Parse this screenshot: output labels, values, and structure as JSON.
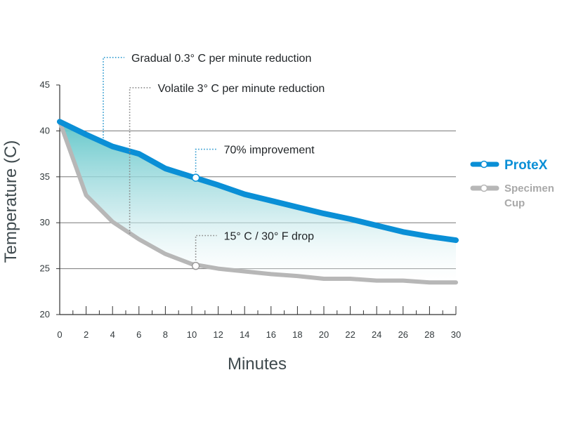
{
  "chart_data": {
    "type": "area",
    "xlabel": "Minutes",
    "ylabel": "Temperature (C)",
    "xlim": [
      0,
      30
    ],
    "ylim": [
      20,
      45
    ],
    "xticks": [
      0,
      2,
      4,
      6,
      8,
      10,
      12,
      14,
      16,
      18,
      20,
      22,
      24,
      26,
      28,
      30
    ],
    "yticks": [
      20,
      25,
      30,
      35,
      40,
      45
    ],
    "grid": "horizontal",
    "legend_position": "right",
    "series": [
      {
        "name": "ProteX",
        "color": "#0a8fd6",
        "x": [
          0,
          2,
          4,
          6,
          8,
          10,
          12,
          14,
          16,
          18,
          20,
          22,
          24,
          26,
          28,
          30
        ],
        "y": [
          41.0,
          39.6,
          38.3,
          37.5,
          35.9,
          35.0,
          34.1,
          33.1,
          32.4,
          31.7,
          31.0,
          30.4,
          29.7,
          29.0,
          28.5,
          28.1
        ]
      },
      {
        "name": "Specimen Cup",
        "color": "#b7b7b7",
        "x": [
          0,
          2,
          4,
          6,
          8,
          10,
          12,
          14,
          16,
          18,
          20,
          22,
          24,
          26,
          28,
          30
        ],
        "y": [
          41.0,
          33.0,
          30.1,
          28.2,
          26.6,
          25.5,
          25.0,
          24.7,
          24.4,
          24.2,
          23.9,
          23.9,
          23.7,
          23.7,
          23.5,
          23.5
        ]
      }
    ],
    "markers": [
      {
        "series": 0,
        "x": 10.3,
        "y": 34.9
      },
      {
        "series": 1,
        "x": 10.3,
        "y": 25.3
      }
    ],
    "annotations": [
      {
        "text": "Gradual 0.3° C per minute reduction",
        "point_x": 3.3,
        "point_y": 39.2,
        "color": "#2f9bd0",
        "text_y": 48.0
      },
      {
        "text": "Volatile 3° C per minute reduction",
        "point_x": 5.3,
        "point_y": 28.8,
        "color": "#888888",
        "text_y": 44.7
      },
      {
        "text": "70% improvement",
        "point_x": 10.3,
        "point_y": 34.9,
        "color": "#2f9bd0",
        "text_y": 38.0
      },
      {
        "text": "15° C / 30° F drop",
        "point_x": 10.3,
        "point_y": 25.3,
        "color": "#888888",
        "text_y": 28.6
      }
    ]
  },
  "legend": {
    "items": [
      {
        "label_line1": "ProteX",
        "label_line2": "",
        "color": "#0a8fd6"
      },
      {
        "label_line1": "Specimen",
        "label_line2": "Cup",
        "color": "#b7b7b7"
      }
    ]
  }
}
